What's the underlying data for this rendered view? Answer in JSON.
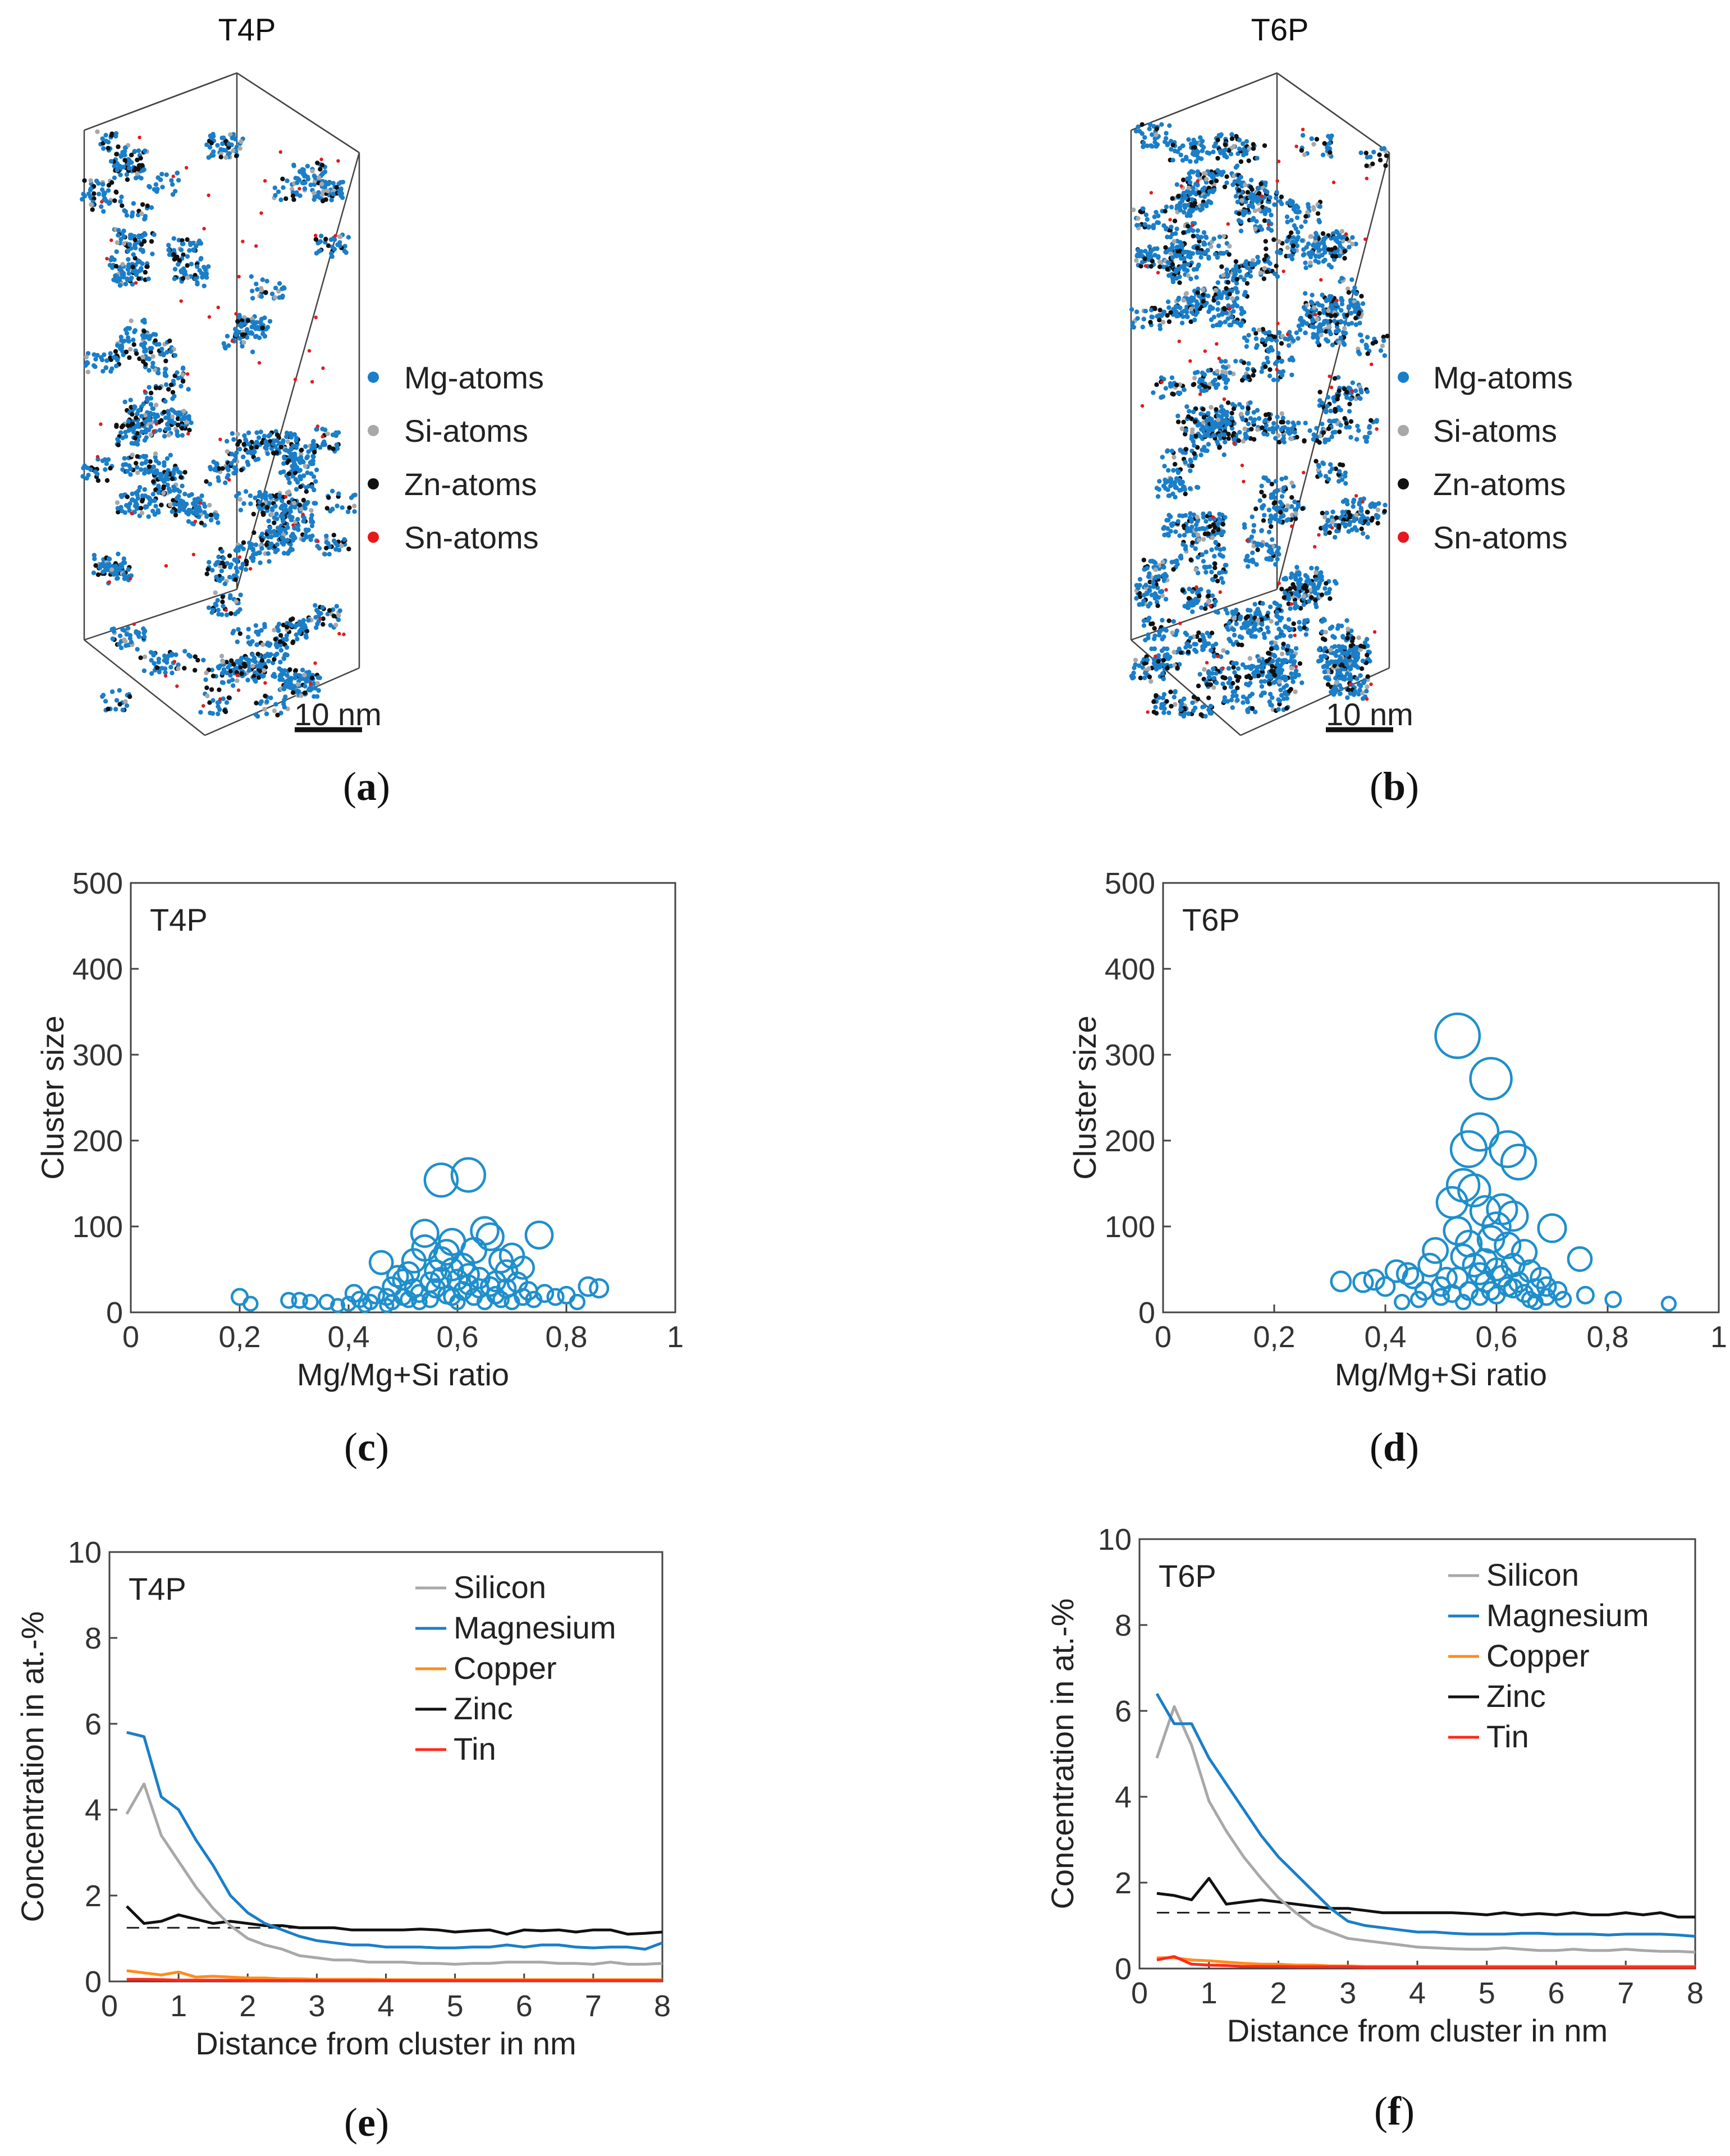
{
  "colors": {
    "mg": "#1a7ec8",
    "si": "#a8a8a8",
    "zn": "#111111",
    "sn": "#e41a1c",
    "copper": "#ff8c1a",
    "tin": "#ff2a1a",
    "scatter": "#1f8fcb"
  },
  "panel_labels": {
    "a": {
      "open": "(",
      "letter": "a",
      "close": ")"
    },
    "b": {
      "open": "(",
      "letter": "b",
      "close": ")"
    },
    "c": {
      "open": "(",
      "letter": "c",
      "close": ")"
    },
    "d": {
      "open": "(",
      "letter": "d",
      "close": ")"
    },
    "e": {
      "open": "(",
      "letter": "e",
      "close": ")"
    },
    "f": {
      "open": "(",
      "letter": "f",
      "close": ")"
    }
  },
  "atom_maps": [
    {
      "title": "T4P",
      "scale_bar": "10 nm",
      "legend": [
        "Mg-atoms",
        "Si-atoms",
        "Zn-atoms",
        "Sn-atoms"
      ]
    },
    {
      "title": "T6P",
      "scale_bar": "10 nm",
      "legend": [
        "Mg-atoms",
        "Si-atoms",
        "Zn-atoms",
        "Sn-atoms"
      ]
    }
  ],
  "chart_data": [
    {
      "type": "scatter",
      "label": "T4P",
      "xlabel": "Mg/Mg+Si ratio",
      "ylabel": "Cluster size",
      "xlim": [
        0,
        1
      ],
      "ylim": [
        0,
        500
      ],
      "xticks": [
        "0",
        "0,2",
        "0,4",
        "0,6",
        "0,8",
        "1"
      ],
      "yticks": [
        "0",
        "100",
        "200",
        "300",
        "400",
        "500"
      ],
      "marker_size_scales_with_cluster_size": true,
      "points": [
        [
          0.2,
          18
        ],
        [
          0.22,
          10
        ],
        [
          0.29,
          14
        ],
        [
          0.31,
          14
        ],
        [
          0.33,
          12
        ],
        [
          0.36,
          12
        ],
        [
          0.38,
          8
        ],
        [
          0.4,
          10
        ],
        [
          0.41,
          22
        ],
        [
          0.42,
          15
        ],
        [
          0.44,
          12
        ],
        [
          0.45,
          20
        ],
        [
          0.46,
          58
        ],
        [
          0.47,
          18
        ],
        [
          0.48,
          30
        ],
        [
          0.49,
          42
        ],
        [
          0.5,
          38
        ],
        [
          0.51,
          46
        ],
        [
          0.52,
          28
        ],
        [
          0.53,
          22
        ],
        [
          0.54,
          92
        ],
        [
          0.55,
          35
        ],
        [
          0.56,
          48
        ],
        [
          0.57,
          62
        ],
        [
          0.57,
          154
        ],
        [
          0.58,
          70
        ],
        [
          0.59,
          18
        ],
        [
          0.59,
          82
        ],
        [
          0.6,
          38
        ],
        [
          0.61,
          55
        ],
        [
          0.62,
          44
        ],
        [
          0.62,
          160
        ],
        [
          0.63,
          72
        ],
        [
          0.64,
          28
        ],
        [
          0.65,
          95
        ],
        [
          0.66,
          88
        ],
        [
          0.66,
          30
        ],
        [
          0.67,
          20
        ],
        [
          0.68,
          60
        ],
        [
          0.69,
          48
        ],
        [
          0.7,
          66
        ],
        [
          0.71,
          35
        ],
        [
          0.72,
          52
        ],
        [
          0.73,
          25
        ],
        [
          0.74,
          15
        ],
        [
          0.75,
          90
        ],
        [
          0.76,
          22
        ],
        [
          0.78,
          18
        ],
        [
          0.8,
          20
        ],
        [
          0.82,
          12
        ],
        [
          0.84,
          30
        ],
        [
          0.86,
          28
        ],
        [
          0.5,
          18
        ],
        [
          0.53,
          12
        ],
        [
          0.55,
          15
        ],
        [
          0.58,
          20
        ],
        [
          0.6,
          12
        ],
        [
          0.63,
          18
        ],
        [
          0.65,
          12
        ],
        [
          0.68,
          15
        ],
        [
          0.7,
          12
        ],
        [
          0.56,
          28
        ],
        [
          0.61,
          25
        ],
        [
          0.64,
          40
        ],
        [
          0.67,
          36
        ],
        [
          0.52,
          60
        ],
        [
          0.54,
          75
        ],
        [
          0.57,
          40
        ],
        [
          0.59,
          50
        ],
        [
          0.62,
          32
        ],
        [
          0.69,
          28
        ],
        [
          0.72,
          18
        ],
        [
          0.48,
          12
        ],
        [
          0.51,
          15
        ],
        [
          0.43,
          8
        ],
        [
          0.47,
          8
        ]
      ]
    },
    {
      "type": "scatter",
      "label": "T6P",
      "xlabel": "Mg/Mg+Si ratio",
      "ylabel": "Cluster size",
      "xlim": [
        0,
        1
      ],
      "ylim": [
        0,
        500
      ],
      "xticks": [
        "0",
        "0,2",
        "0,4",
        "0,6",
        "0,8",
        "1"
      ],
      "yticks": [
        "0",
        "100",
        "200",
        "300",
        "400",
        "500"
      ],
      "marker_size_scales_with_cluster_size": true,
      "points": [
        [
          0.32,
          36
        ],
        [
          0.36,
          35
        ],
        [
          0.38,
          38
        ],
        [
          0.4,
          30
        ],
        [
          0.42,
          48
        ],
        [
          0.43,
          12
        ],
        [
          0.44,
          45
        ],
        [
          0.45,
          40
        ],
        [
          0.46,
          15
        ],
        [
          0.47,
          25
        ],
        [
          0.48,
          55
        ],
        [
          0.49,
          72
        ],
        [
          0.5,
          30
        ],
        [
          0.51,
          40
        ],
        [
          0.52,
          22
        ],
        [
          0.52,
          128
        ],
        [
          0.53,
          322
        ],
        [
          0.53,
          95
        ],
        [
          0.54,
          65
        ],
        [
          0.54,
          148
        ],
        [
          0.55,
          190
        ],
        [
          0.55,
          80
        ],
        [
          0.56,
          142
        ],
        [
          0.57,
          210
        ],
        [
          0.57,
          45
        ],
        [
          0.58,
          118
        ],
        [
          0.58,
          60
        ],
        [
          0.59,
          85
        ],
        [
          0.59,
          272
        ],
        [
          0.6,
          100
        ],
        [
          0.6,
          20
        ],
        [
          0.61,
          120
        ],
        [
          0.62,
          78
        ],
        [
          0.62,
          190
        ],
        [
          0.63,
          112
        ],
        [
          0.63,
          55
        ],
        [
          0.64,
          175
        ],
        [
          0.64,
          35
        ],
        [
          0.65,
          70
        ],
        [
          0.66,
          48
        ],
        [
          0.67,
          28
        ],
        [
          0.68,
          40
        ],
        [
          0.69,
          18
        ],
        [
          0.7,
          98
        ],
        [
          0.71,
          25
        ],
        [
          0.72,
          15
        ],
        [
          0.75,
          62
        ],
        [
          0.76,
          20
        ],
        [
          0.81,
          15
        ],
        [
          0.91,
          10
        ],
        [
          0.5,
          18
        ],
        [
          0.55,
          25
        ],
        [
          0.58,
          35
        ],
        [
          0.6,
          50
        ],
        [
          0.62,
          30
        ],
        [
          0.65,
          22
        ],
        [
          0.67,
          12
        ],
        [
          0.53,
          40
        ],
        [
          0.56,
          55
        ],
        [
          0.61,
          42
        ],
        [
          0.63,
          28
        ],
        [
          0.66,
          15
        ],
        [
          0.69,
          30
        ],
        [
          0.54,
          12
        ],
        [
          0.57,
          18
        ],
        [
          0.59,
          25
        ]
      ]
    },
    {
      "type": "line",
      "label": "T4P",
      "xlabel": "Distance from cluster in nm",
      "ylabel": "Concentration in at.-%",
      "xlim": [
        0,
        8
      ],
      "ylim": [
        0,
        10
      ],
      "xticks": [
        "0",
        "1",
        "2",
        "3",
        "4",
        "5",
        "6",
        "7",
        "8"
      ],
      "yticks": [
        "0",
        "2",
        "4",
        "6",
        "8",
        "10"
      ],
      "x": [
        0.25,
        0.5,
        0.75,
        1,
        1.25,
        1.5,
        1.75,
        2,
        2.25,
        2.5,
        2.75,
        3,
        3.25,
        3.5,
        3.75,
        4,
        4.25,
        4.5,
        4.75,
        5,
        5.25,
        5.5,
        5.75,
        6,
        6.25,
        6.5,
        6.75,
        7,
        7.25,
        7.5,
        7.75,
        8
      ],
      "reference_line": {
        "y": 1.25,
        "x_range": [
          0.25,
          3.1
        ],
        "style": "dashed"
      },
      "series": [
        {
          "name": "Silicon",
          "color_key": "si",
          "values": [
            3.9,
            4.6,
            3.4,
            2.8,
            2.2,
            1.7,
            1.3,
            1.0,
            0.85,
            0.75,
            0.6,
            0.55,
            0.5,
            0.5,
            0.45,
            0.45,
            0.45,
            0.42,
            0.42,
            0.4,
            0.42,
            0.42,
            0.45,
            0.45,
            0.45,
            0.42,
            0.42,
            0.4,
            0.45,
            0.4,
            0.4,
            0.42
          ]
        },
        {
          "name": "Magnesium",
          "color_key": "mg",
          "values": [
            5.8,
            5.7,
            4.3,
            4.0,
            3.3,
            2.7,
            2.0,
            1.6,
            1.35,
            1.2,
            1.05,
            0.95,
            0.9,
            0.85,
            0.85,
            0.8,
            0.8,
            0.8,
            0.78,
            0.78,
            0.8,
            0.8,
            0.85,
            0.8,
            0.85,
            0.85,
            0.8,
            0.78,
            0.8,
            0.8,
            0.75,
            0.9
          ]
        },
        {
          "name": "Copper",
          "color_key": "copper",
          "values": [
            0.25,
            0.2,
            0.15,
            0.22,
            0.1,
            0.12,
            0.1,
            0.08,
            0.08,
            0.06,
            0.06,
            0.05,
            0.05,
            0.05,
            0.05,
            0.04,
            0.04,
            0.04,
            0.04,
            0.04,
            0.04,
            0.04,
            0.04,
            0.04,
            0.04,
            0.04,
            0.04,
            0.04,
            0.04,
            0.04,
            0.04,
            0.04
          ]
        },
        {
          "name": "Zinc",
          "color_key": "zn",
          "values": [
            1.75,
            1.35,
            1.4,
            1.55,
            1.45,
            1.35,
            1.4,
            1.35,
            1.3,
            1.3,
            1.25,
            1.25,
            1.25,
            1.2,
            1.2,
            1.2,
            1.2,
            1.22,
            1.2,
            1.15,
            1.18,
            1.2,
            1.1,
            1.2,
            1.18,
            1.2,
            1.15,
            1.2,
            1.2,
            1.1,
            1.12,
            1.15
          ]
        },
        {
          "name": "Tin",
          "color_key": "tin",
          "values": [
            0.05,
            0.05,
            0.04,
            0.03,
            0.03,
            0.03,
            0.03,
            0.02,
            0.02,
            0.02,
            0.02,
            0.02,
            0.02,
            0.02,
            0.02,
            0.02,
            0.02,
            0.02,
            0.02,
            0.02,
            0.02,
            0.02,
            0.02,
            0.02,
            0.02,
            0.02,
            0.02,
            0.02,
            0.02,
            0.02,
            0.02,
            0.02
          ]
        }
      ]
    },
    {
      "type": "line",
      "label": "T6P",
      "xlabel": "Distance from cluster in nm",
      "ylabel": "Concentration in at.-%",
      "xlim": [
        0,
        8
      ],
      "ylim": [
        0,
        10
      ],
      "xticks": [
        "0",
        "1",
        "2",
        "3",
        "4",
        "5",
        "6",
        "7",
        "8"
      ],
      "yticks": [
        "0",
        "2",
        "4",
        "6",
        "8",
        "10"
      ],
      "x": [
        0.25,
        0.5,
        0.75,
        1,
        1.25,
        1.5,
        1.75,
        2,
        2.25,
        2.5,
        2.75,
        3,
        3.25,
        3.5,
        3.75,
        4,
        4.25,
        4.5,
        4.75,
        5,
        5.25,
        5.5,
        5.75,
        6,
        6.25,
        6.5,
        6.75,
        7,
        7.25,
        7.5,
        7.75,
        8
      ],
      "reference_line": {
        "y": 1.3,
        "x_range": [
          0.25,
          3.05
        ],
        "style": "dashed"
      },
      "series": [
        {
          "name": "Silicon",
          "color_key": "si",
          "values": [
            4.9,
            6.1,
            5.2,
            3.9,
            3.2,
            2.6,
            2.1,
            1.65,
            1.3,
            1.0,
            0.85,
            0.7,
            0.65,
            0.6,
            0.55,
            0.5,
            0.48,
            0.46,
            0.45,
            0.45,
            0.48,
            0.45,
            0.42,
            0.42,
            0.45,
            0.42,
            0.42,
            0.45,
            0.42,
            0.4,
            0.4,
            0.38
          ]
        },
        {
          "name": "Magnesium",
          "color_key": "mg",
          "values": [
            6.4,
            5.7,
            5.7,
            4.9,
            4.3,
            3.7,
            3.1,
            2.6,
            2.2,
            1.8,
            1.4,
            1.1,
            1.0,
            0.95,
            0.9,
            0.85,
            0.85,
            0.82,
            0.8,
            0.8,
            0.8,
            0.82,
            0.82,
            0.8,
            0.8,
            0.8,
            0.78,
            0.8,
            0.8,
            0.8,
            0.78,
            0.75
          ]
        },
        {
          "name": "Copper",
          "color_key": "copper",
          "values": [
            0.25,
            0.25,
            0.2,
            0.18,
            0.15,
            0.12,
            0.1,
            0.1,
            0.08,
            0.08,
            0.06,
            0.06,
            0.05,
            0.05,
            0.05,
            0.05,
            0.05,
            0.05,
            0.05,
            0.05,
            0.05,
            0.05,
            0.05,
            0.05,
            0.05,
            0.05,
            0.05,
            0.05,
            0.05,
            0.05,
            0.05,
            0.05
          ]
        },
        {
          "name": "Zinc",
          "color_key": "zn",
          "values": [
            1.75,
            1.7,
            1.6,
            2.1,
            1.5,
            1.55,
            1.6,
            1.55,
            1.5,
            1.45,
            1.4,
            1.4,
            1.35,
            1.3,
            1.3,
            1.3,
            1.3,
            1.3,
            1.28,
            1.25,
            1.3,
            1.25,
            1.28,
            1.25,
            1.3,
            1.25,
            1.25,
            1.3,
            1.25,
            1.3,
            1.2,
            1.2
          ]
        },
        {
          "name": "Tin",
          "color_key": "tin",
          "values": [
            0.2,
            0.28,
            0.1,
            0.08,
            0.07,
            0.05,
            0.05,
            0.05,
            0.04,
            0.04,
            0.04,
            0.04,
            0.03,
            0.03,
            0.03,
            0.03,
            0.03,
            0.03,
            0.03,
            0.03,
            0.03,
            0.03,
            0.03,
            0.03,
            0.03,
            0.03,
            0.03,
            0.03,
            0.03,
            0.03,
            0.03,
            0.03
          ]
        }
      ]
    }
  ]
}
